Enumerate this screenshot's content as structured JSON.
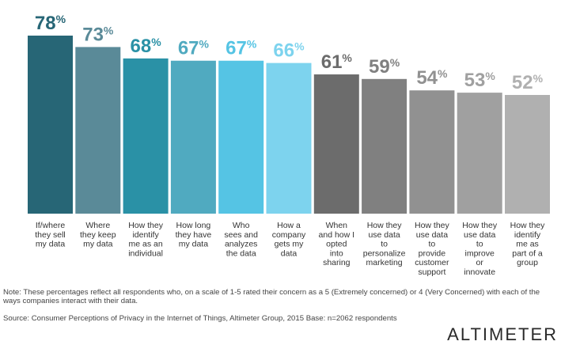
{
  "chart_data": {
    "type": "bar",
    "categories": [
      [
        "If/where",
        "they sell",
        "my data"
      ],
      [
        "Where",
        "they keep",
        "my data"
      ],
      [
        "How they",
        "identify",
        "me as an",
        "individual"
      ],
      [
        "How long",
        "they have",
        "my data"
      ],
      [
        "Who",
        "sees and",
        "analyzes",
        "the data"
      ],
      [
        "How a",
        "company",
        "gets my",
        "data"
      ],
      [
        "When",
        "and how I",
        "opted",
        "into",
        "sharing"
      ],
      [
        "How they",
        "use data",
        "to",
        "personalize",
        "marketing"
      ],
      [
        "How they",
        "use data",
        "to",
        "provide",
        "customer",
        "support"
      ],
      [
        "How they",
        "use data",
        "to",
        "improve",
        "or",
        "innovate"
      ],
      [
        "How they",
        "identify",
        "me as",
        "part of a",
        "group"
      ]
    ],
    "values": [
      78,
      73,
      68,
      67,
      67,
      66,
      61,
      59,
      54,
      53,
      52
    ],
    "value_suffix": "%",
    "bar_colors": [
      "#276676",
      "#5a8a98",
      "#2a91a6",
      "#50aac0",
      "#55c4e4",
      "#7dd3ee",
      "#6c6c6c",
      "#808080",
      "#919191",
      "#a0a0a0",
      "#b0b0b0"
    ],
    "label_colors": [
      "#276676",
      "#5a8a98",
      "#2a91a6",
      "#50aac0",
      "#55c4e4",
      "#7dd3ee",
      "#6c6c6c",
      "#808080",
      "#919191",
      "#a0a0a0",
      "#b0b0b0"
    ],
    "ylim": [
      0,
      78
    ],
    "grid": false,
    "title": "",
    "xlabel": "",
    "ylabel": ""
  },
  "note": "Note: These percentages reflect all respondents who, on a scale of 1-5 rated their concern as a 5 (Extremely concerned) or 4 (Very Concerned) with each of the ways companies interact with their data.",
  "source": "Source: Consumer Perceptions of Privacy in the Internet of Things, Altimeter Group, 2015 Base: n=2062 respondents",
  "logo": "ALTIMETER"
}
